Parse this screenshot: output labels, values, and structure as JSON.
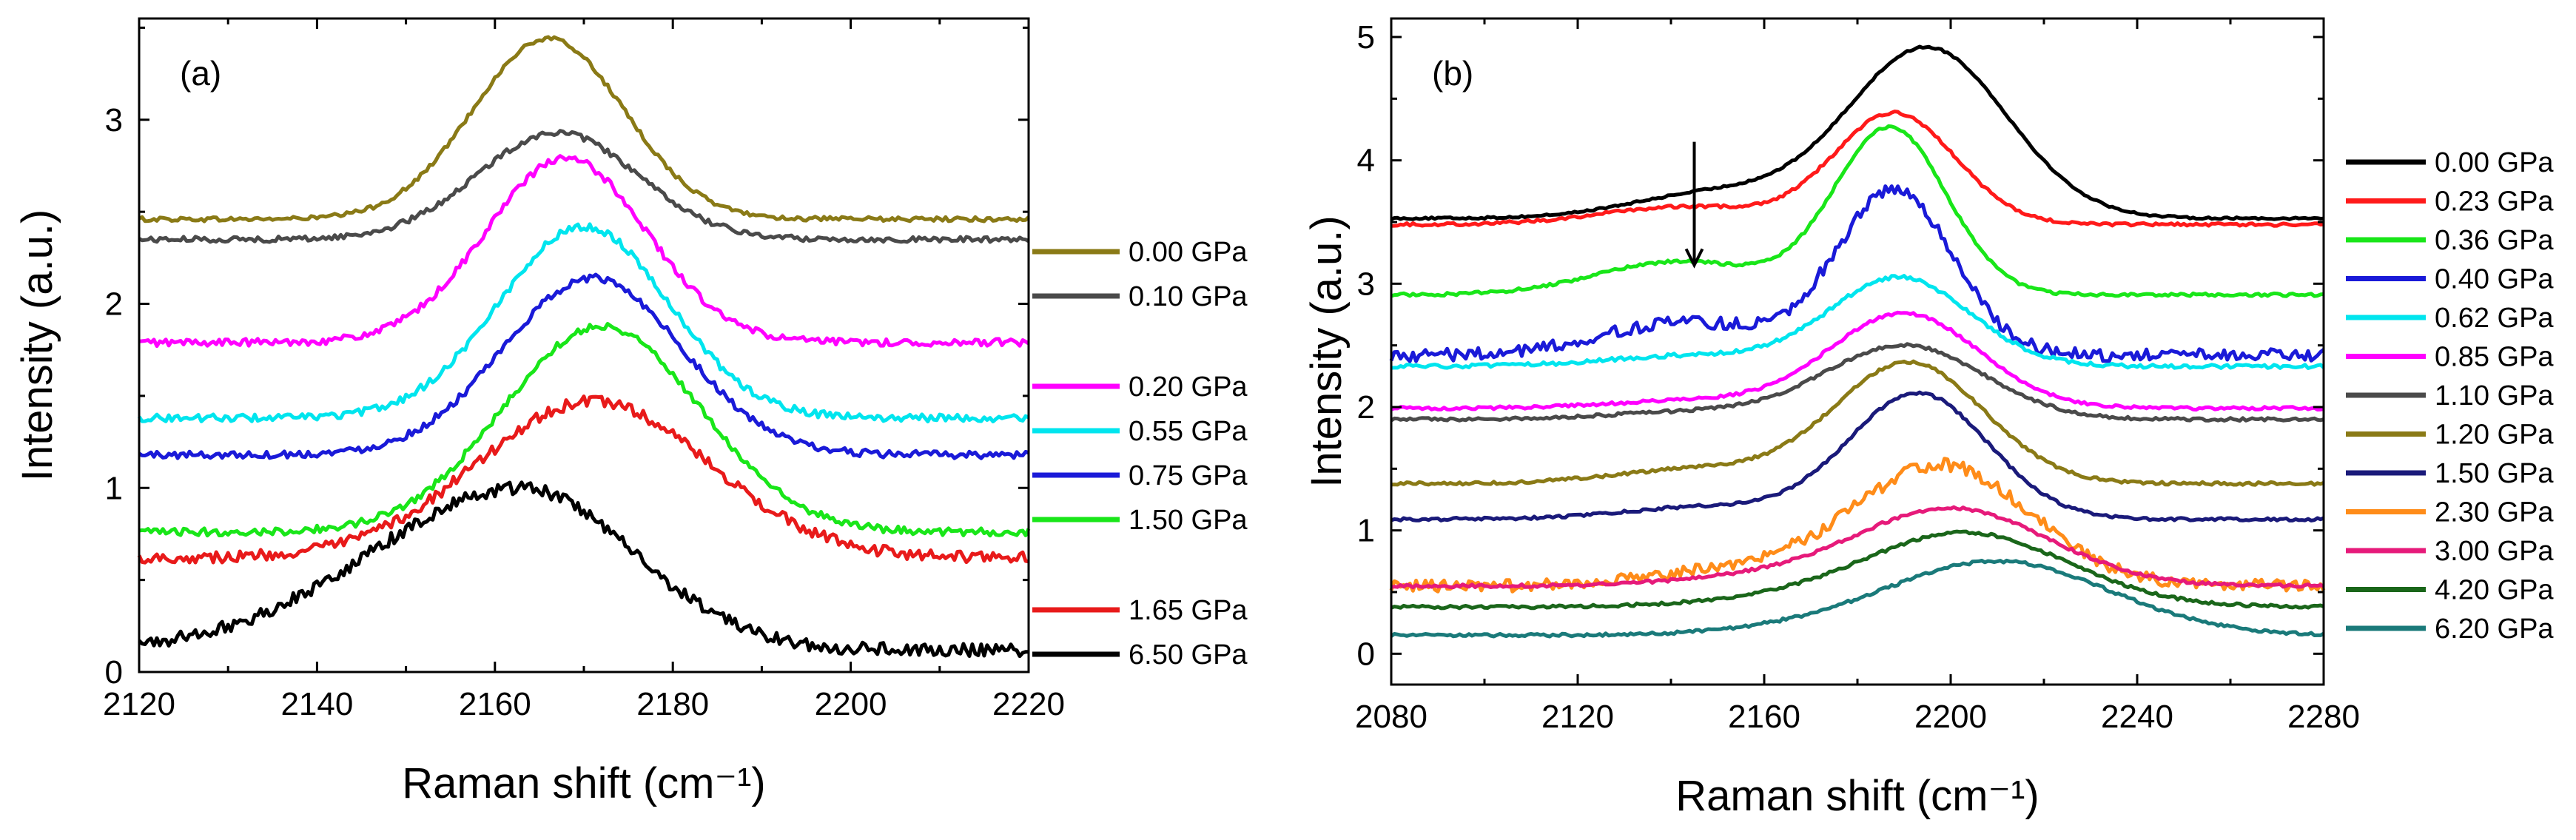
{
  "figure": {
    "panels": [
      "(a)",
      "(b)"
    ]
  },
  "chart_data": [
    {
      "type": "line",
      "panel_label": "(a)",
      "xlabel": "Raman shift (cm⁻¹)",
      "ylabel": "Intensity (a.u.)",
      "xlim": [
        2120,
        2220
      ],
      "ylim": [
        0,
        3.55
      ],
      "xticks": [
        2120,
        2140,
        2160,
        2180,
        2200,
        2220
      ],
      "yticks": [
        0,
        1,
        2,
        3
      ],
      "legend_position": "right-outside",
      "series": [
        {
          "name": "0.00 GPa",
          "color": "#8a7a16",
          "baseline": 2.46,
          "peak_x": 2166,
          "amp": 0.98,
          "width": 8.5,
          "noise": 0.012,
          "skew": 0.0,
          "legend_gap": false
        },
        {
          "name": "0.10 GPa",
          "color": "#4a4a4a",
          "baseline": 2.35,
          "peak_x": 2167,
          "amp": 0.58,
          "width": 9.0,
          "noise": 0.015,
          "skew": 0.0,
          "legend_gap": false
        },
        {
          "name": "0.20 GPa",
          "color": "#ff00ff",
          "baseline": 1.79,
          "peak_x": 2168,
          "amp": 1.0,
          "width": 9.0,
          "noise": 0.02,
          "skew": 0.0,
          "legend_gap": true
        },
        {
          "name": "0.55 GPa",
          "color": "#00e5ee",
          "baseline": 1.38,
          "peak_x": 2170,
          "amp": 1.04,
          "width": 9.5,
          "noise": 0.02,
          "skew": 0.0,
          "legend_gap": false
        },
        {
          "name": "0.75 GPa",
          "color": "#1a1ad8",
          "baseline": 1.18,
          "peak_x": 2171,
          "amp": 0.96,
          "width": 10.0,
          "noise": 0.02,
          "skew": 0.0,
          "legend_gap": false
        },
        {
          "name": "1.50 GPa",
          "color": "#19e619",
          "baseline": 0.76,
          "peak_x": 2172,
          "amp": 1.12,
          "width": 11.0,
          "noise": 0.02,
          "skew": 0.0,
          "legend_gap": false
        },
        {
          "name": "1.65 GPa",
          "color": "#e81a1a",
          "baseline": 0.62,
          "peak_x": 2171,
          "amp": 0.85,
          "width": 13.0,
          "noise": 0.03,
          "skew": 0.0,
          "legend_gap": true
        },
        {
          "name": "6.50 GPa",
          "color": "#000000",
          "baseline": 0.12,
          "peak_x": 2163,
          "amp": 0.88,
          "width": 13.5,
          "noise": 0.035,
          "skew": 0.25,
          "legend_gap": false
        }
      ]
    },
    {
      "type": "line",
      "panel_label": "(b)",
      "xlabel": "Raman shift (cm⁻¹)",
      "ylabel": "Intensity (a.u.)",
      "xlim": [
        2080,
        2280
      ],
      "ylim": [
        -0.25,
        5.15
      ],
      "xticks": [
        2080,
        2120,
        2160,
        2200,
        2240,
        2280
      ],
      "yticks": [
        0,
        1,
        2,
        3,
        4,
        5
      ],
      "legend_position": "right-outside",
      "annotation": {
        "type": "arrow",
        "x": 2145,
        "y_from": 4.15,
        "y_to": 3.15
      },
      "series": [
        {
          "name": "0.00 GPa",
          "color": "#000000",
          "baseline": 3.53,
          "peak_x": 2195,
          "amp": 1.38,
          "width": 17.0,
          "noise": 0.008,
          "shoulder": 0.15,
          "legend_gap": false
        },
        {
          "name": "0.23 GPa",
          "color": "#ff1a1a",
          "baseline": 3.48,
          "peak_x": 2188,
          "amp": 0.9,
          "width": 13.0,
          "noise": 0.012,
          "shoulder": 0.16,
          "legend_gap": false
        },
        {
          "name": "0.36 GPa",
          "color": "#19e619",
          "baseline": 2.91,
          "peak_x": 2187,
          "amp": 1.35,
          "width": 12.0,
          "noise": 0.012,
          "shoulder": 0.2,
          "legend_gap": false
        },
        {
          "name": "0.40 GPa",
          "color": "#1a1ad8",
          "baseline": 2.42,
          "peak_x": 2188,
          "amp": 1.33,
          "width": 12.5,
          "noise": 0.05,
          "shoulder": 0.2,
          "legend_gap": false
        },
        {
          "name": "0.62 GPa",
          "color": "#00e5ee",
          "baseline": 2.33,
          "peak_x": 2189,
          "amp": 0.72,
          "width": 15.0,
          "noise": 0.015,
          "shoulder": 0.12,
          "legend_gap": false
        },
        {
          "name": "0.85 GPa",
          "color": "#ff00ff",
          "baseline": 1.99,
          "peak_x": 2190,
          "amp": 0.77,
          "width": 16.0,
          "noise": 0.012,
          "shoulder": 0.08,
          "legend_gap": false
        },
        {
          "name": "1.10 GPa",
          "color": "#4a4a4a",
          "baseline": 1.9,
          "peak_x": 2190,
          "amp": 0.6,
          "width": 17.0,
          "noise": 0.012,
          "shoulder": 0.1,
          "legend_gap": false
        },
        {
          "name": "1.20 GPa",
          "color": "#8a7a16",
          "baseline": 1.38,
          "peak_x": 2191,
          "amp": 0.98,
          "width": 16.0,
          "noise": 0.012,
          "shoulder": 0.12,
          "legend_gap": false
        },
        {
          "name": "1.50 GPa",
          "color": "#1a1a7a",
          "baseline": 1.09,
          "peak_x": 2193,
          "amp": 1.02,
          "width": 15.0,
          "noise": 0.012,
          "shoulder": 0.1,
          "legend_gap": false
        },
        {
          "name": "2.30 GPa",
          "color": "#ff8c19",
          "baseline": 0.55,
          "peak_x": 2198,
          "amp": 0.98,
          "width": 19.0,
          "noise": 0.05,
          "shoulder": 0.12,
          "legend_gap": false
        },
        {
          "name": "3.00 GPa",
          "color": "#e61a7a",
          "baseline": 0.55,
          "peak_x": 2200,
          "amp": 0.63,
          "width": 21.0,
          "noise": 0.012,
          "shoulder": 0.08,
          "legend_gap": false
        },
        {
          "name": "4.20 GPa",
          "color": "#1a661a",
          "baseline": 0.38,
          "peak_x": 2203,
          "amp": 0.6,
          "width": 22.0,
          "noise": 0.012,
          "shoulder": 0.06,
          "legend_gap": false
        },
        {
          "name": "6.20 GPa",
          "color": "#1a7a7a",
          "baseline": 0.15,
          "peak_x": 2210,
          "amp": 0.6,
          "width": 24.0,
          "noise": 0.012,
          "shoulder": 0.05,
          "legend_gap": false
        }
      ]
    }
  ]
}
